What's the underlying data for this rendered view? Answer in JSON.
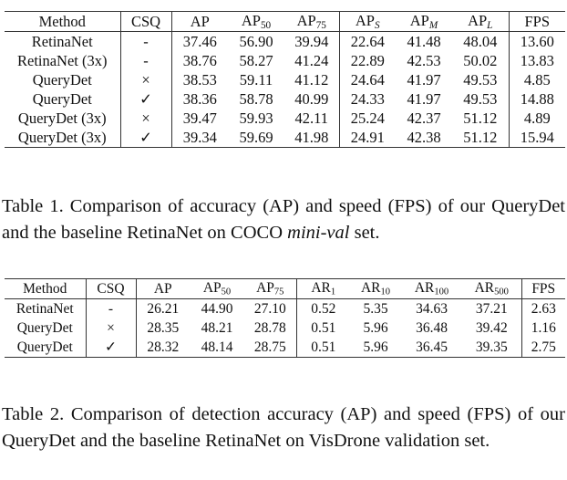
{
  "table1": {
    "headers": [
      {
        "base": "Method"
      },
      {
        "base": "CSQ"
      },
      {
        "base": "AP"
      },
      {
        "base": "AP",
        "sub": "50"
      },
      {
        "base": "AP",
        "sub": "75"
      },
      {
        "base": "AP",
        "sub": "S",
        "italic": true
      },
      {
        "base": "AP",
        "sub": "M",
        "italic": true
      },
      {
        "base": "AP",
        "sub": "L",
        "italic": true
      },
      {
        "base": "FPS"
      }
    ],
    "rows": [
      [
        "RetinaNet",
        "-",
        "37.46",
        "56.90",
        "39.94",
        "22.64",
        "41.48",
        "48.04",
        "13.60"
      ],
      [
        "RetinaNet (3x)",
        "-",
        "38.76",
        "58.27",
        "41.24",
        "22.89",
        "42.53",
        "50.02",
        "13.83"
      ],
      [
        "QueryDet",
        "×",
        "38.53",
        "59.11",
        "41.12",
        "24.64",
        "41.97",
        "49.53",
        "4.85"
      ],
      [
        "QueryDet",
        "✓",
        "38.36",
        "58.78",
        "40.99",
        "24.33",
        "41.97",
        "49.53",
        "14.88"
      ],
      [
        "QueryDet (3x)",
        "×",
        "39.47",
        "59.93",
        "42.11",
        "25.24",
        "42.37",
        "51.12",
        "4.89"
      ],
      [
        "QueryDet (3x)",
        "✓",
        "39.34",
        "59.69",
        "41.98",
        "24.91",
        "42.38",
        "51.12",
        "15.94"
      ]
    ],
    "caption_prefix": "Table 1.  Comparison of accuracy (AP) and speed (FPS) of our QueryDet and the baseline RetinaNet on COCO ",
    "caption_italic": "mini-val",
    "caption_suffix": " set."
  },
  "table2": {
    "headers": [
      {
        "base": "Method"
      },
      {
        "base": "CSQ"
      },
      {
        "base": "AP"
      },
      {
        "base": "AP",
        "sub": "50"
      },
      {
        "base": "AP",
        "sub": "75"
      },
      {
        "base": "AR",
        "sub": "1"
      },
      {
        "base": "AR",
        "sub": "10"
      },
      {
        "base": "AR",
        "sub": "100"
      },
      {
        "base": "AR",
        "sub": "500"
      },
      {
        "base": "FPS"
      }
    ],
    "rows": [
      [
        "RetinaNet",
        "-",
        "26.21",
        "44.90",
        "27.10",
        "0.52",
        "5.35",
        "34.63",
        "37.21",
        "2.63"
      ],
      [
        "QueryDet",
        "×",
        "28.35",
        "48.21",
        "28.78",
        "0.51",
        "5.96",
        "36.48",
        "39.42",
        "1.16"
      ],
      [
        "QueryDet",
        "✓",
        "28.32",
        "48.14",
        "28.75",
        "0.51",
        "5.96",
        "36.45",
        "39.35",
        "2.75"
      ]
    ],
    "caption": "Table 2. Comparison of detection accuracy (AP) and speed (FPS) of our QueryDet and the baseline RetinaNet on VisDrone validation set."
  }
}
